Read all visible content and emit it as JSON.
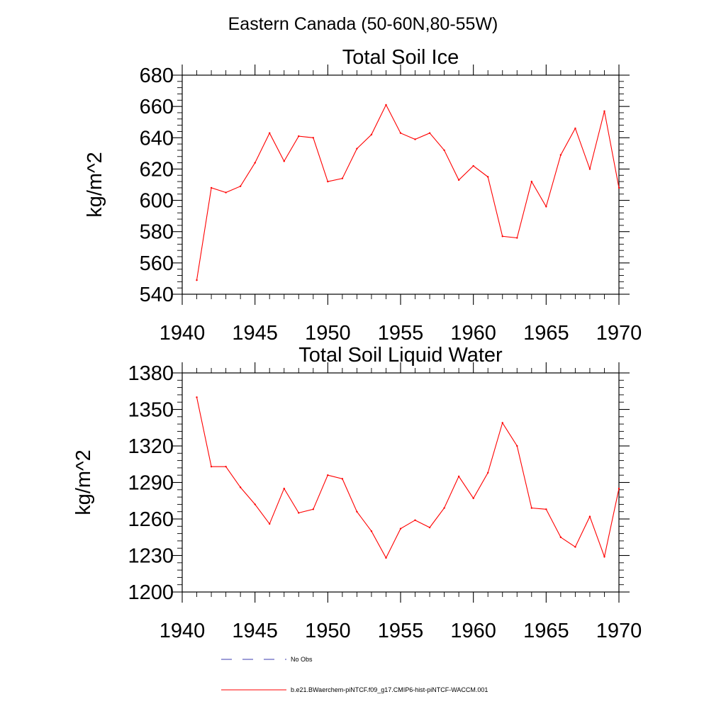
{
  "figure": {
    "suptitle": "Eastern Canada (50-60N,80-55W)"
  },
  "chart_data": [
    {
      "type": "line",
      "title": "Total Soil Ice",
      "xlabel": "",
      "ylabel": "kg/m^2",
      "xlim": [
        1940,
        1970
      ],
      "ylim": [
        540,
        680
      ],
      "xticks": [
        1940,
        1945,
        1950,
        1955,
        1960,
        1965,
        1970
      ],
      "yticks": [
        540,
        560,
        580,
        600,
        620,
        640,
        660,
        680
      ],
      "grid": false,
      "x": [
        1941,
        1942,
        1943,
        1944,
        1945,
        1946,
        1947,
        1948,
        1949,
        1950,
        1951,
        1952,
        1953,
        1954,
        1955,
        1956,
        1957,
        1958,
        1959,
        1960,
        1961,
        1962,
        1963,
        1964,
        1965,
        1966,
        1967,
        1968,
        1969,
        1970
      ],
      "series": [
        {
          "name": "b.e21.BWaerchem-piNTCF.f09_g17.CMIP6-hist-piNTCF-WACCM.001",
          "color": "#ff0000",
          "values": [
            549,
            608,
            605,
            609,
            624,
            643,
            625,
            641,
            640,
            612,
            614,
            633,
            642,
            661,
            643,
            639,
            643,
            632,
            613,
            622,
            615,
            577,
            576,
            612,
            596,
            629,
            646,
            620,
            657,
            608
          ]
        }
      ]
    },
    {
      "type": "line",
      "title": "Total Soil Liquid Water",
      "xlabel": "",
      "ylabel": "kg/m^2",
      "xlim": [
        1940,
        1970
      ],
      "ylim": [
        1200,
        1380
      ],
      "xticks": [
        1940,
        1945,
        1950,
        1955,
        1960,
        1965,
        1970
      ],
      "yticks": [
        1200,
        1230,
        1260,
        1290,
        1320,
        1350,
        1380
      ],
      "grid": false,
      "x": [
        1941,
        1942,
        1943,
        1944,
        1945,
        1946,
        1947,
        1948,
        1949,
        1950,
        1951,
        1952,
        1953,
        1954,
        1955,
        1956,
        1957,
        1958,
        1959,
        1960,
        1961,
        1962,
        1963,
        1964,
        1965,
        1966,
        1967,
        1968,
        1969,
        1970
      ],
      "series": [
        {
          "name": "b.e21.BWaerchem-piNTCF.f09_g17.CMIP6-hist-piNTCF-WACCM.001",
          "color": "#ff0000",
          "values": [
            1360,
            1303,
            1303,
            1286,
            1272,
            1256,
            1285,
            1265,
            1268,
            1296,
            1293,
            1266,
            1250,
            1228,
            1252,
            1259,
            1253,
            1269,
            1295,
            1277,
            1298,
            1339,
            1320,
            1269,
            1268,
            1245,
            1237,
            1262,
            1229,
            1285
          ]
        }
      ]
    }
  ],
  "legend": {
    "placement": "bottom",
    "items": [
      {
        "label": "No Obs",
        "color": "#3b3bb0",
        "style": "dashed"
      },
      {
        "label": "b.e21.BWaerchem-piNTCF.f09_g17.CMIP6-hist-piNTCF-WACCM.001",
        "color": "#ff0000",
        "style": "solid"
      }
    ]
  }
}
